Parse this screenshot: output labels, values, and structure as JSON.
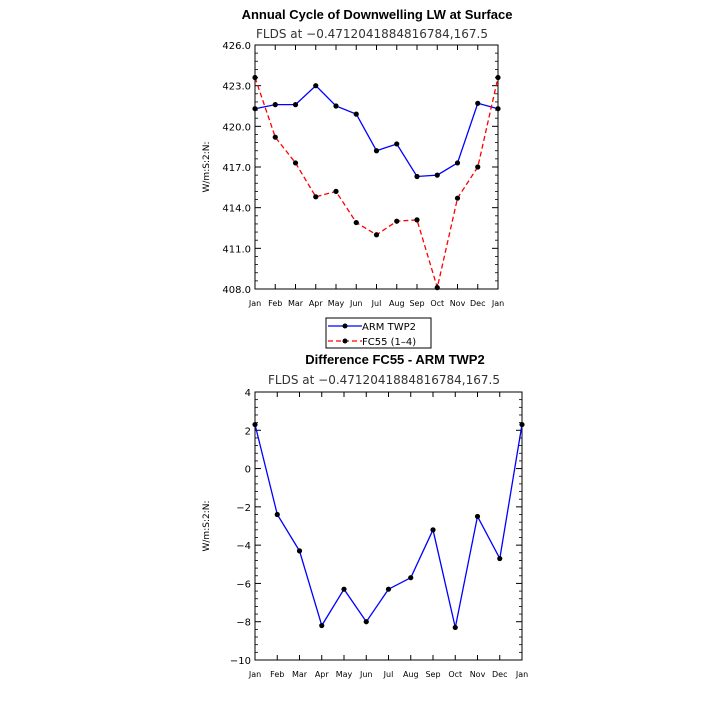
{
  "chart_data": [
    {
      "type": "line",
      "title": "Annual Cycle of Downwelling LW at Surface",
      "subtitle": "FLDS at −0.4712041884816784,167.5",
      "xlabel": "",
      "ylabel": "W/m:S:2:N:",
      "categories": [
        "Jan",
        "Feb",
        "Mar",
        "Apr",
        "May",
        "Jun",
        "Jul",
        "Aug",
        "Sep",
        "Oct",
        "Nov",
        "Dec",
        "Jan"
      ],
      "ylim": [
        408.0,
        426.0
      ],
      "yticks": [
        "408.0",
        "411.0",
        "414.0",
        "417.0",
        "420.0",
        "423.0",
        "426.0"
      ],
      "series": [
        {
          "name": "ARM TWP2",
          "color": "#0000ff",
          "dash": "solid",
          "values": [
            421.3,
            421.6,
            421.6,
            423.0,
            421.5,
            420.9,
            418.2,
            418.7,
            416.3,
            416.4,
            417.3,
            421.7,
            421.3
          ]
        },
        {
          "name": "FC55 (1–4)",
          "color": "#ff0000",
          "dash": "dashed",
          "values": [
            423.6,
            419.2,
            417.3,
            414.8,
            415.2,
            412.9,
            412.0,
            413.0,
            413.1,
            408.1,
            414.7,
            417.0,
            423.6
          ]
        }
      ],
      "grid": false,
      "legend": "bottom-center"
    },
    {
      "type": "line",
      "title": "Difference FC55 - ARM TWP2",
      "subtitle": "FLDS at −0.4712041884816784,167.5",
      "xlabel": "",
      "ylabel": "W/m:S:2:N:",
      "categories": [
        "Jan",
        "Feb",
        "Mar",
        "Apr",
        "May",
        "Jun",
        "Jul",
        "Aug",
        "Sep",
        "Oct",
        "Nov",
        "Dec",
        "Jan"
      ],
      "ylim": [
        -10,
        4
      ],
      "yticks": [
        "−10",
        "−8",
        "−6",
        "−4",
        "−2",
        "0",
        "2",
        "4"
      ],
      "series": [
        {
          "color": "#0000ff",
          "dash": "solid",
          "values": [
            2.3,
            -2.4,
            -4.3,
            -8.2,
            -6.3,
            -8.0,
            -6.3,
            -5.7,
            -3.2,
            -8.3,
            -2.5,
            -4.7,
            2.3
          ]
        }
      ],
      "grid": false
    }
  ]
}
